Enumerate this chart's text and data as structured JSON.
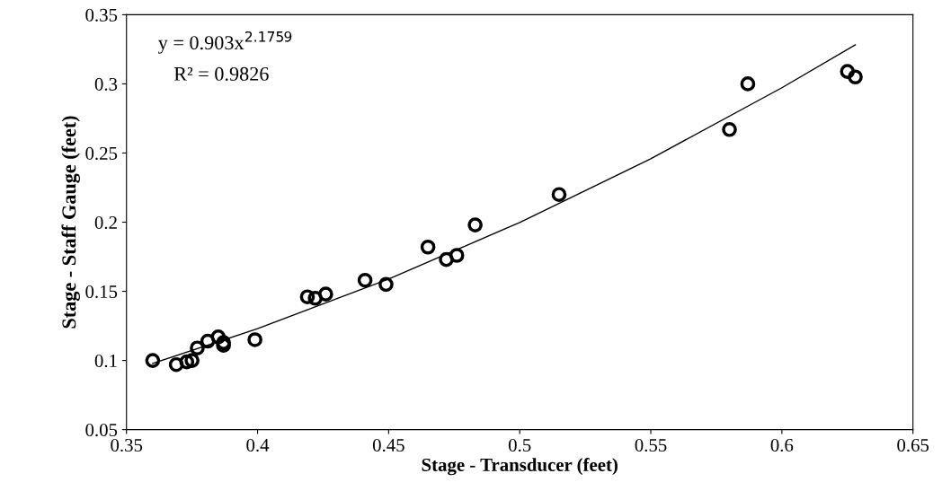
{
  "chart_data": {
    "type": "scatter",
    "xlabel": "Stage - Transducer (feet)",
    "ylabel": "Stage - Staff Gauge (feet)",
    "xlim": [
      0.35,
      0.65
    ],
    "xticks": [
      0.35,
      0.4,
      0.45,
      0.5,
      0.55,
      0.6,
      0.65
    ],
    "ylim": [
      0.05,
      0.35
    ],
    "yticks": [
      0.05,
      0.1,
      0.15,
      0.2,
      0.25,
      0.3,
      0.35
    ],
    "grid": false,
    "legend": false,
    "annotations": [
      "y = 0.903x$^{2.1759}$",
      "R² = 0.9826"
    ],
    "series": [
      {
        "marker": "circle",
        "color": "#000000",
        "x": [
          0.36,
          0.369,
          0.373,
          0.375,
          0.377,
          0.381,
          0.385,
          0.387,
          0.387,
          0.399,
          0.419,
          0.422,
          0.426,
          0.441,
          0.449,
          0.465,
          0.472,
          0.476,
          0.483,
          0.515,
          0.58,
          0.587,
          0.625,
          0.628
        ],
        "values": [
          0.1,
          0.097,
          0.099,
          0.1,
          0.109,
          0.114,
          0.117,
          0.113,
          0.111,
          0.115,
          0.146,
          0.145,
          0.148,
          0.158,
          0.155,
          0.182,
          0.173,
          0.176,
          0.198,
          0.22,
          0.267,
          0.3,
          0.309,
          0.305
        ]
      },
      {
        "type": "line",
        "marker": "none",
        "color": "#000000",
        "x": [
          0.36,
          0.4,
          0.45,
          0.5,
          0.55,
          0.6,
          0.628
        ],
        "values": [
          0.0978,
          0.123,
          0.1589,
          0.1998,
          0.2459,
          0.2972,
          0.3282
        ]
      }
    ]
  }
}
